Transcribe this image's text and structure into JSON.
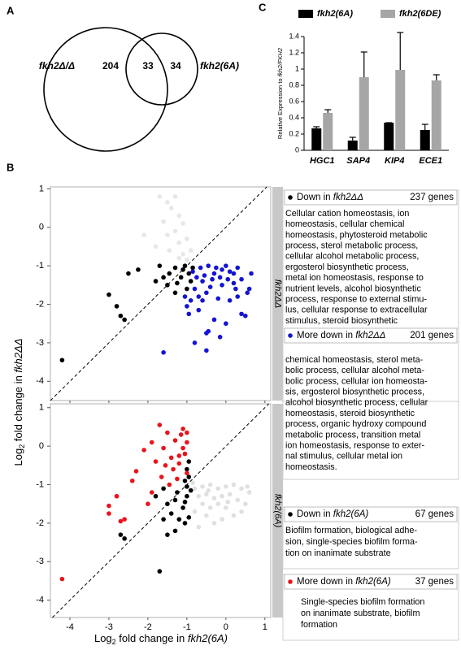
{
  "panel_labels": [
    "A",
    "B",
    "C"
  ],
  "venn": {
    "sets": [
      "fkh2Δ/Δ",
      "fkh2(6A)"
    ],
    "counts": [
      204,
      33,
      34
    ]
  },
  "chart_data": [
    {
      "type": "bar",
      "ylabel": {
        "text": "Relative Expression to ",
        "italic": "fkh2/FKH2"
      },
      "categories": [
        "HGC1",
        "SAP4",
        "KIP4",
        "ECE1"
      ],
      "series": [
        {
          "name": "fkh2(6A)",
          "color": "#000000",
          "values": [
            0.27,
            0.12,
            0.34,
            0.25
          ],
          "errors": [
            0.02,
            0.04,
            0,
            0.07
          ]
        },
        {
          "name": "fkh2(6DE)",
          "color": "#a6a6a6",
          "values": [
            0.46,
            0.9,
            0.99,
            0.86
          ],
          "errors": [
            0.04,
            0.31,
            0.46,
            0.07
          ]
        }
      ],
      "ylim": [
        0,
        1.5
      ],
      "yticks": [
        0,
        0.2,
        0.4,
        0.6,
        0.8,
        1,
        1.2,
        1.4
      ]
    },
    {
      "type": "scatter",
      "facet": "fkh2ΔΔ",
      "ylabel": {
        "text": "Log",
        "sub": "2",
        "rest": " fold change in ",
        "italic": "fkh2ΔΔ"
      },
      "xlim": [
        -4.5,
        1.15
      ],
      "ylim": [
        -4.5,
        1.05
      ],
      "yticks": [
        -4,
        -3,
        -2,
        -1,
        0,
        1
      ],
      "series": [
        {
          "color": "#bbbbbb",
          "opacity": 0.35,
          "x": [
            -1.5,
            -1.6,
            -1.4,
            -1.2,
            -1.3,
            -1.1,
            -1.0,
            -1.2,
            -1.5,
            -1.7,
            -2.1,
            -1.8,
            -1.2,
            -1.45,
            -1.0,
            -0.9,
            -1.3,
            -1.1
          ],
          "y": [
            -0.2,
            0.15,
            0.5,
            -0.4,
            0.8,
            -0.7,
            -0.3,
            -0.8,
            0.65,
            0.8,
            -0.2,
            -0.5,
            0.3,
            -0.6,
            -0.85,
            -0.6,
            -0.1,
            0.1
          ]
        },
        {
          "color": "#000000",
          "opacity": 1,
          "x": [
            -4.2,
            -3.0,
            -2.8,
            -2.7,
            -2.6,
            -2.5,
            -2.25,
            -1.8,
            -1.7,
            -1.6,
            -1.5,
            -1.45,
            -1.3,
            -1.25,
            -1.15,
            -1.1,
            -1.0,
            -0.95,
            -0.9,
            -1.3,
            -0.85,
            -1.05
          ],
          "y": [
            -3.45,
            -1.75,
            -2.05,
            -2.3,
            -2.4,
            -1.2,
            -1.1,
            -1.4,
            -1.0,
            -1.3,
            -1.5,
            -1.2,
            -1.05,
            -1.45,
            -1.3,
            -1.1,
            -1.6,
            -1.2,
            -1.4,
            -1.7,
            -1.05,
            -1.0
          ]
        },
        {
          "color": "#1414d2",
          "opacity": 1,
          "x": [
            -1.6,
            -0.8,
            -0.5,
            -0.15,
            -0.45,
            -0.5,
            -0.95,
            -0.7,
            -0.3,
            0.4,
            0.5,
            0.0,
            -0.6,
            -0.2,
            0.1,
            0.3,
            0.55,
            0.6,
            -0.8,
            -0.4,
            -0.1,
            0.2,
            0.4,
            0.65,
            -0.75,
            -0.55,
            -0.3,
            -0.1,
            0.1,
            0.3,
            -0.65,
            -0.45,
            -0.25,
            0.0,
            0.2,
            -0.85,
            -0.6,
            -0.35,
            -0.15,
            0.05,
            -0.5,
            -0.7,
            0.25,
            -0.9,
            -1.05,
            -1.0
          ],
          "y": [
            -3.25,
            -3.0,
            -3.2,
            -2.85,
            -2.7,
            -2.75,
            -2.25,
            -2.15,
            -2.4,
            -2.25,
            -2.3,
            -2.5,
            -1.9,
            -1.85,
            -1.9,
            -1.8,
            -1.7,
            -1.6,
            -1.6,
            -1.55,
            -1.5,
            -1.45,
            -1.35,
            -1.2,
            -1.3,
            -1.25,
            -1.2,
            -1.1,
            -1.15,
            -1.05,
            -1.05,
            -1.0,
            -1.05,
            -1.0,
            -1.2,
            -1.15,
            -1.4,
            -1.35,
            -1.3,
            -1.35,
            -1.7,
            -1.8,
            -1.6,
            -1.9,
            -1.8,
            -2.05
          ]
        }
      ]
    },
    {
      "type": "scatter",
      "facet": "fkh2(6A)",
      "xlabel": {
        "text": "Log",
        "sub": "2",
        "rest": " fold change in ",
        "italic": "fkh2(6A)"
      },
      "xlim": [
        -4.5,
        1.15
      ],
      "ylim": [
        -4.45,
        1.1
      ],
      "xticks": [
        -4,
        -3,
        -2,
        -1,
        0,
        1
      ],
      "yticks": [
        -4,
        -3,
        -2,
        -1,
        0,
        1
      ],
      "series": [
        {
          "color": "#999999",
          "opacity": 0.3,
          "x": [
            -0.8,
            -0.6,
            -0.4,
            -0.2,
            0.0,
            0.2,
            0.4,
            0.6,
            -0.7,
            -0.5,
            -0.3,
            -0.1,
            0.1,
            0.3,
            -0.6,
            -0.4,
            -0.2,
            0.0,
            0.5,
            -0.8,
            -0.5,
            -0.3,
            0.2,
            -0.7,
            -0.1,
            0.4,
            -0.85,
            -0.45,
            0.05,
            0.55
          ],
          "y": [
            -1.1,
            -1.05,
            -1.0,
            -1.1,
            -1.05,
            -1.0,
            -1.1,
            -1.2,
            -1.3,
            -1.25,
            -1.35,
            -1.3,
            -1.25,
            -1.4,
            -1.5,
            -1.6,
            -1.5,
            -1.6,
            -1.5,
            -1.7,
            -1.8,
            -2.0,
            -1.8,
            -2.1,
            -1.9,
            -1.7,
            -0.95,
            -1.15,
            -1.45,
            -1.05
          ]
        },
        {
          "color": "#000000",
          "opacity": 1,
          "x": [
            -2.7,
            -2.6,
            -1.7,
            -1.5,
            -1.3,
            -1.6,
            -1.4,
            -1.2,
            -1.05,
            -0.95,
            -1.5,
            -1.3,
            -1.1,
            -1.0,
            -1.25,
            -1.0,
            -0.95,
            -1.0,
            -0.95,
            -1.05,
            -1.6,
            -1.8,
            -1.05,
            -0.9
          ],
          "y": [
            -2.3,
            -2.4,
            -3.25,
            -2.3,
            -2.2,
            -1.9,
            -1.75,
            -1.9,
            -2.0,
            -1.85,
            -1.5,
            -1.4,
            -1.6,
            -1.3,
            -1.2,
            -1.05,
            -0.8,
            -0.6,
            -0.4,
            -0.9,
            -1.1,
            -1.3,
            -1.45,
            -1.15
          ]
        },
        {
          "color": "#e8141c",
          "opacity": 1,
          "x": [
            -4.2,
            -3.0,
            -3.0,
            -2.8,
            -2.6,
            -2.4,
            -2.3,
            -2.1,
            -2.0,
            -1.9,
            -1.8,
            -1.7,
            -1.65,
            -1.6,
            -1.55,
            -1.5,
            -1.45,
            -1.4,
            -1.35,
            -1.3,
            -1.25,
            -1.2,
            -1.15,
            -1.1,
            -1.05,
            -1.0,
            -1.0,
            -1.0,
            -1.1,
            -1.2,
            -2.7,
            -1.9
          ],
          "y": [
            -3.45,
            -1.75,
            -1.55,
            -1.3,
            -1.9,
            -0.9,
            -0.65,
            -0.1,
            -1.5,
            0.1,
            -0.4,
            0.55,
            -0.8,
            -0.05,
            -0.5,
            0.35,
            -1.0,
            -0.3,
            -0.6,
            0.15,
            -0.85,
            -0.45,
            0.3,
            0.45,
            -0.2,
            0.1,
            0.35,
            -0.7,
            -0.05,
            -0.25,
            -1.95,
            -1.2
          ]
        }
      ]
    }
  ],
  "gene_sets": [
    {
      "color": "#000000",
      "label": "Down in ",
      "gene": "fkh2ΔΔ",
      "count": "237 genes",
      "terms": [
        "Cellular cation homeostasis, ion",
        "homeostasis, cellular chemical",
        "homeostasis, phytosteroid metabolic",
        "process, sterol metabolic process,",
        "cellular alcohol metabolic process,",
        "ergosterol biosynthetic process,",
        "metal ion homeostasis, response to",
        "nutrient levels, alcohol biosynthetic",
        "process, response to external stimu-",
        "lus, cellular response to extracellular",
        "stimulus, steroid biosynthetic"
      ]
    },
    {
      "color": "#1414d2",
      "label": "More down in ",
      "gene": "fkh2ΔΔ",
      "count": "201 genes",
      "terms": [
        "chemical homeostasis, sterol meta-",
        "bolic process, cellular alcohol meta-",
        "bolic process, cellular ion homeosta-",
        "sis, ergosterol biosynthetic process,",
        "alcohol biosynthetic process, cellular",
        "homeostasis, steroid biosynthetic",
        "process, organic hydroxy compound",
        "metabolic process, transition metal",
        "ion homeostasis, response to exter-",
        "nal stimulus, cellular metal ion",
        "homeostasis."
      ]
    },
    {
      "color": "#000000",
      "label": "Down in ",
      "gene": "fkh2(6A)",
      "count": "67 genes",
      "terms": [
        "Biofilm formation, biological adhe-",
        "sion, single-species biofilm forma-",
        "tion on inanimate substrate"
      ]
    },
    {
      "color": "#e8141c",
      "label": "More down in ",
      "gene": "fkh2(6A)",
      "count": "37 genes",
      "terms": [
        "Single-species biofilm formation",
        "on inanimate substrate, biofilm",
        "formation"
      ]
    }
  ]
}
